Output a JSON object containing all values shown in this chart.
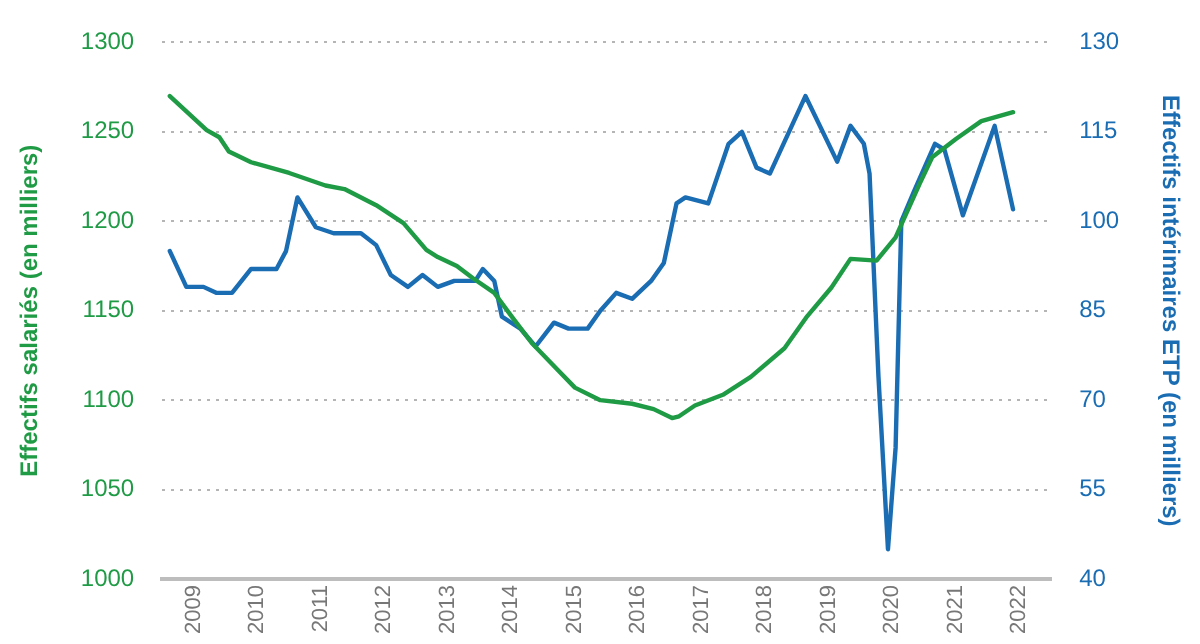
{
  "chart_data": {
    "type": "line",
    "ylabel": "Effectifs salariés (en milliers)",
    "y2label": "Effectifs intérimaires ETP (en milliers)",
    "xlim": [
      2008.5,
      2022.5
    ],
    "xticks": [
      2009,
      2010,
      2011,
      2012,
      2013,
      2014,
      2015,
      2016,
      2017,
      2018,
      2019,
      2020,
      2021,
      2022
    ],
    "ylim": [
      1000,
      1300
    ],
    "yticks": [
      1000,
      1050,
      1100,
      1150,
      1200,
      1250,
      1300
    ],
    "y2lim": [
      40,
      130
    ],
    "y2ticks": [
      40,
      55,
      70,
      85,
      100,
      115,
      130
    ],
    "grid": "y",
    "legend": false,
    "marker": "none",
    "line_style": "solid",
    "series": [
      {
        "color": "#1f9b45",
        "x": [
          2008.62,
          2009.2,
          2009.4,
          2009.55,
          2009.9,
          2010.5,
          2011.07,
          2011.37,
          2011.87,
          2012.3,
          2012.66,
          2012.84,
          2013.14,
          2013.4,
          2013.73,
          2014.02,
          2014.32,
          2014.7,
          2015.0,
          2015.4,
          2015.9,
          2016.24,
          2016.53,
          2016.64,
          2016.89,
          2017.33,
          2017.77,
          2018.3,
          2018.66,
          2019.04,
          2019.34,
          2019.75,
          2020.05,
          2020.43,
          2020.63,
          2021.0,
          2021.4,
          2021.9
        ],
        "values": [
          1270,
          1251,
          1247,
          1239,
          1233,
          1227,
          1220,
          1218,
          1209,
          1199,
          1184,
          1180,
          1175,
          1168,
          1160,
          1146,
          1132,
          1118,
          1107,
          1100,
          1098,
          1095,
          1090,
          1091,
          1097,
          1103,
          1113,
          1129,
          1147,
          1163,
          1179,
          1178,
          1191,
          1221,
          1236,
          1246,
          1256,
          1261
        ]
      },
      {
        "color": "#1a6db3",
        "axis": "y2",
        "x": [
          2008.62,
          2008.88,
          2009.15,
          2009.35,
          2009.6,
          2009.9,
          2010.1,
          2010.3,
          2010.45,
          2010.63,
          2010.92,
          2011.2,
          2011.63,
          2011.87,
          2012.1,
          2012.37,
          2012.6,
          2012.84,
          2013.1,
          2013.43,
          2013.55,
          2013.73,
          2013.85,
          2014.14,
          2014.38,
          2014.67,
          2014.9,
          2015.2,
          2015.4,
          2015.65,
          2015.9,
          2016.2,
          2016.4,
          2016.6,
          2016.74,
          2017.1,
          2017.42,
          2017.63,
          2017.86,
          2018.07,
          2018.63,
          2019.13,
          2019.34,
          2019.55,
          2019.64,
          2019.78,
          2019.93,
          2020.05,
          2020.14,
          2020.34,
          2020.67,
          2020.82,
          2021.11,
          2021.61,
          2021.9
        ],
        "values": [
          95,
          89,
          89,
          88,
          88,
          92,
          92,
          92,
          95,
          104,
          99,
          98,
          98,
          96,
          91,
          89,
          91,
          89,
          90,
          90,
          92,
          90,
          84,
          82,
          79,
          83,
          82,
          82,
          85,
          88,
          87,
          90,
          93,
          103,
          104,
          103,
          113,
          115,
          109,
          108,
          121,
          110,
          116,
          113,
          108,
          74,
          45,
          62,
          100,
          105,
          113,
          112,
          101,
          116,
          102
        ]
      }
    ]
  }
}
